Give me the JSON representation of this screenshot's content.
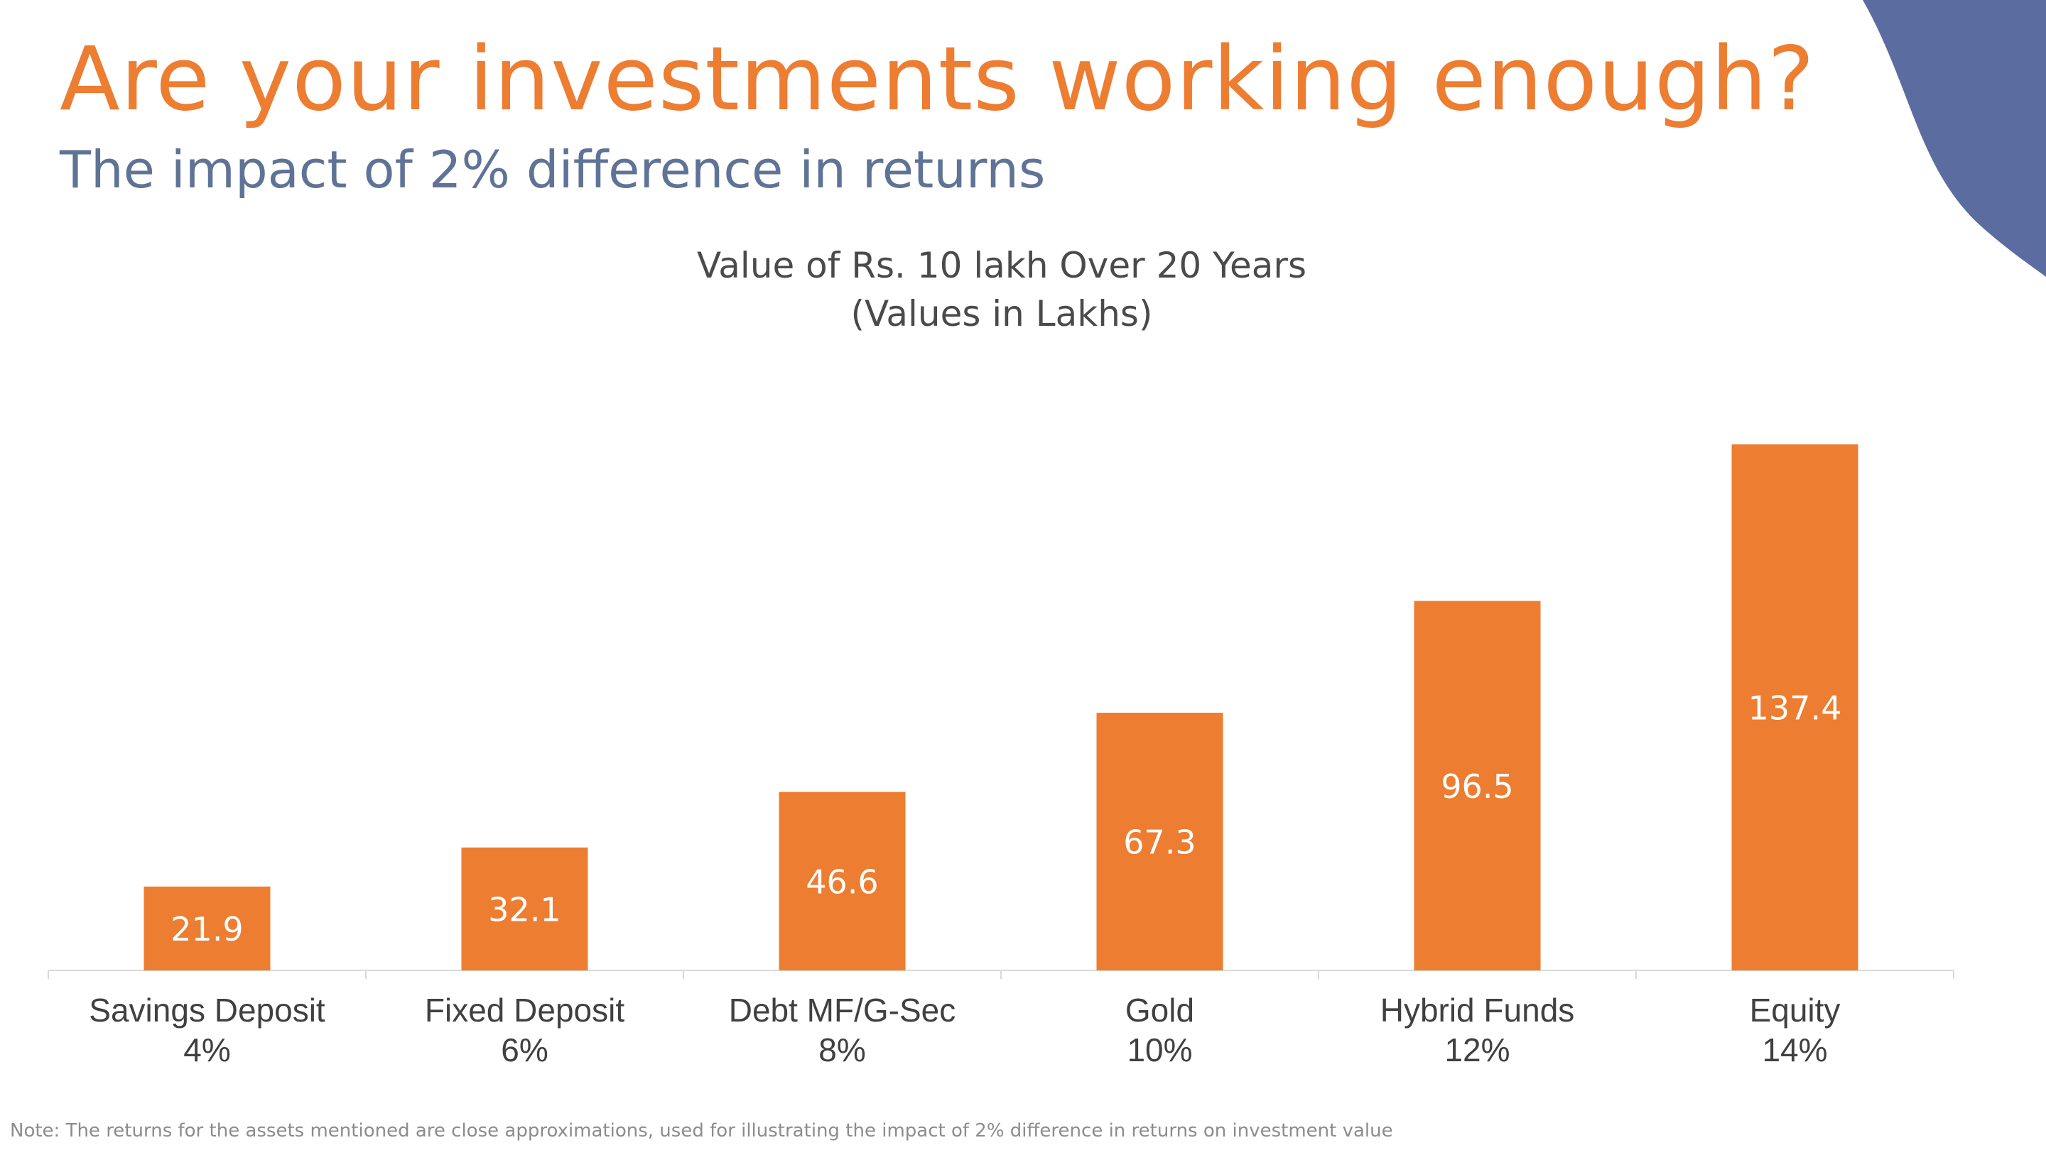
{
  "title": "Are your investments working enough?",
  "subtitle": "The impact of 2% difference in returns",
  "note": "Note: The returns for the assets mentioned are close approximations, used for illustrating the impact of 2% difference in returns on investment value",
  "colors": {
    "accent": "#ED7D31",
    "subtitle": "#5F7396",
    "corner": "#5B6DA0",
    "bar_label": "#FFFFFF",
    "axis_label": "#404040"
  },
  "chart_data": {
    "type": "bar",
    "title": "Value of Rs. 10 lakh Over 20 Years",
    "subtitle": "(Values in Lakhs)",
    "categories": [
      {
        "name": "Savings Deposit",
        "rate": "4%"
      },
      {
        "name": "Fixed Deposit",
        "rate": "6%"
      },
      {
        "name": "Debt MF/G-Sec",
        "rate": "8%"
      },
      {
        "name": "Gold",
        "rate": "10%"
      },
      {
        "name": "Hybrid Funds",
        "rate": "12%"
      },
      {
        "name": "Equity",
        "rate": "14%"
      }
    ],
    "values": [
      21.9,
      32.1,
      46.6,
      67.3,
      96.5,
      137.4
    ],
    "labels": [
      "21.9",
      "32.1",
      "46.6",
      "67.3",
      "96.5",
      "137.4"
    ],
    "xlabel": "",
    "ylabel": "",
    "ylim": [
      0,
      137.4
    ],
    "grid": false,
    "legend": "none"
  }
}
